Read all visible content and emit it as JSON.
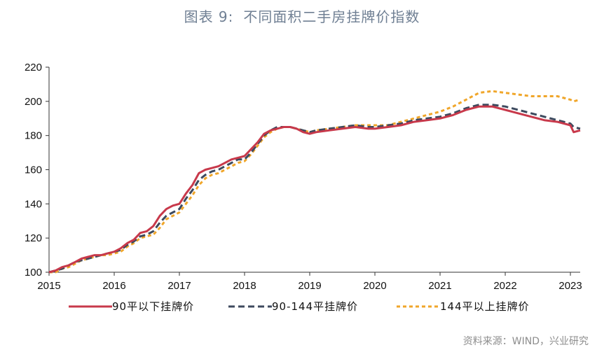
{
  "header": {
    "figure_label": "图表 9:",
    "title": "不同面积二手房挂牌价指数"
  },
  "source": "资料来源：WIND，兴业研究",
  "chart_data": {
    "type": "line",
    "title": "不同面积二手房挂牌价指数",
    "xlabel": "",
    "ylabel": "",
    "x_ticks": [
      "2015",
      "2016",
      "2017",
      "2018",
      "2019",
      "2020",
      "2021",
      "2022",
      "2023"
    ],
    "xlim": [
      2015.0,
      2023.15
    ],
    "ylim": [
      100,
      220
    ],
    "y_ticks": [
      100,
      120,
      140,
      160,
      180,
      200,
      220
    ],
    "grid": false,
    "legend_position": "bottom",
    "series": [
      {
        "name": "90平以下挂牌价",
        "color": "#c8394b",
        "style": "solid",
        "x": [
          2015.0,
          2015.1,
          2015.2,
          2015.3,
          2015.4,
          2015.5,
          2015.6,
          2015.7,
          2015.8,
          2015.9,
          2016.0,
          2016.1,
          2016.2,
          2016.3,
          2016.4,
          2016.5,
          2016.6,
          2016.7,
          2016.8,
          2016.9,
          2017.0,
          2017.1,
          2017.2,
          2017.3,
          2017.4,
          2017.5,
          2017.6,
          2017.7,
          2017.8,
          2017.9,
          2018.0,
          2018.1,
          2018.2,
          2018.3,
          2018.4,
          2018.5,
          2018.6,
          2018.7,
          2018.8,
          2018.9,
          2019.0,
          2019.1,
          2019.3,
          2019.5,
          2019.7,
          2019.9,
          2020.0,
          2020.2,
          2020.4,
          2020.6,
          2020.8,
          2021.0,
          2021.2,
          2021.4,
          2021.6,
          2021.8,
          2022.0,
          2022.2,
          2022.4,
          2022.6,
          2022.8,
          2023.0,
          2023.05,
          2023.15
        ],
        "y": [
          100,
          101,
          103,
          104,
          106,
          108,
          109,
          110,
          110,
          111,
          112,
          114,
          117,
          119,
          123,
          124,
          127,
          133,
          137,
          139,
          140,
          146,
          151,
          158,
          160,
          161,
          162,
          164,
          166,
          167,
          168,
          172,
          176,
          181,
          183,
          184,
          185,
          185,
          184,
          182,
          181,
          182,
          183,
          184,
          185,
          184,
          184,
          185,
          186,
          188,
          189,
          190,
          192,
          195,
          197,
          197,
          195,
          193,
          191,
          189,
          188,
          186,
          182,
          183
        ]
      },
      {
        "name": "90-144平挂牌价",
        "color": "#3d4a5e",
        "style": "dashed",
        "x": [
          2015.0,
          2015.1,
          2015.2,
          2015.3,
          2015.4,
          2015.5,
          2015.6,
          2015.7,
          2015.8,
          2015.9,
          2016.0,
          2016.1,
          2016.2,
          2016.3,
          2016.4,
          2016.5,
          2016.6,
          2016.7,
          2016.8,
          2016.9,
          2017.0,
          2017.1,
          2017.2,
          2017.3,
          2017.4,
          2017.5,
          2017.6,
          2017.7,
          2017.8,
          2017.9,
          2018.0,
          2018.1,
          2018.2,
          2018.3,
          2018.4,
          2018.5,
          2018.6,
          2018.7,
          2018.8,
          2018.9,
          2019.0,
          2019.1,
          2019.3,
          2019.5,
          2019.7,
          2019.9,
          2020.0,
          2020.2,
          2020.4,
          2020.6,
          2020.8,
          2021.0,
          2021.2,
          2021.4,
          2021.6,
          2021.8,
          2022.0,
          2022.2,
          2022.4,
          2022.6,
          2022.8,
          2023.0,
          2023.05,
          2023.15
        ],
        "y": [
          100,
          101,
          102,
          104,
          106,
          107,
          108,
          109,
          110,
          111,
          112,
          113,
          116,
          118,
          121,
          122,
          124,
          129,
          133,
          135,
          137,
          143,
          148,
          154,
          157,
          159,
          160,
          162,
          164,
          166,
          166,
          170,
          175,
          180,
          183,
          185,
          185,
          185,
          184,
          183,
          182,
          183,
          184,
          185,
          186,
          185,
          185,
          186,
          187,
          189,
          190,
          191,
          193,
          196,
          198,
          198,
          197,
          195,
          193,
          191,
          189,
          187,
          185,
          184
        ]
      },
      {
        "name": "144平以上挂牌价",
        "color": "#f0a62a",
        "style": "dotted",
        "x": [
          2015.0,
          2015.1,
          2015.2,
          2015.3,
          2015.4,
          2015.5,
          2015.6,
          2015.7,
          2015.8,
          2015.9,
          2016.0,
          2016.1,
          2016.2,
          2016.3,
          2016.4,
          2016.5,
          2016.6,
          2016.7,
          2016.8,
          2016.9,
          2017.0,
          2017.1,
          2017.2,
          2017.3,
          2017.4,
          2017.5,
          2017.6,
          2017.7,
          2017.8,
          2017.9,
          2018.0,
          2018.1,
          2018.2,
          2018.3,
          2018.4,
          2018.5,
          2018.6,
          2018.7,
          2018.8,
          2018.9,
          2019.0,
          2019.1,
          2019.3,
          2019.5,
          2019.7,
          2019.9,
          2020.0,
          2020.2,
          2020.4,
          2020.6,
          2020.8,
          2021.0,
          2021.2,
          2021.4,
          2021.6,
          2021.8,
          2022.0,
          2022.2,
          2022.4,
          2022.6,
          2022.8,
          2023.0,
          2023.05,
          2023.15
        ],
        "y": [
          100,
          100,
          102,
          103,
          105,
          107,
          108,
          109,
          110,
          110,
          111,
          112,
          115,
          117,
          120,
          121,
          122,
          126,
          131,
          133,
          135,
          140,
          145,
          151,
          155,
          157,
          158,
          160,
          162,
          164,
          165,
          169,
          174,
          179,
          182,
          184,
          185,
          185,
          184,
          183,
          182,
          183,
          184,
          185,
          186,
          186,
          186,
          186,
          188,
          190,
          192,
          194,
          197,
          201,
          205,
          206,
          205,
          204,
          203,
          203,
          203,
          201,
          200,
          201
        ]
      }
    ]
  }
}
